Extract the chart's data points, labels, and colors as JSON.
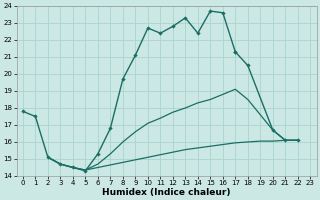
{
  "xlabel": "Humidex (Indice chaleur)",
  "xlim": [
    -0.5,
    23.5
  ],
  "ylim": [
    14,
    24
  ],
  "xticks": [
    0,
    1,
    2,
    3,
    4,
    5,
    6,
    7,
    8,
    9,
    10,
    11,
    12,
    13,
    14,
    15,
    16,
    17,
    18,
    19,
    20,
    21,
    22,
    23
  ],
  "yticks": [
    14,
    15,
    16,
    17,
    18,
    19,
    20,
    21,
    22,
    23,
    24
  ],
  "bg_color": "#cce8e4",
  "grid_color": "#aad4ce",
  "line_color": "#1a6e64",
  "line1_x": [
    0,
    1,
    2,
    3,
    4,
    5,
    6,
    7,
    8,
    9,
    10,
    11,
    12,
    13,
    14,
    15,
    16,
    17
  ],
  "line1_y": [
    17.8,
    17.5,
    15.1,
    14.7,
    14.5,
    14.3,
    15.3,
    16.8,
    19.7,
    21.1,
    22.7,
    22.4,
    22.8,
    23.3,
    22.4,
    23.7,
    23.6,
    21.3
  ],
  "line2_x": [
    17,
    18,
    20,
    21,
    22
  ],
  "line2_y": [
    21.3,
    20.5,
    16.7,
    16.1,
    16.1
  ],
  "line3_x": [
    2,
    3,
    4,
    5,
    6,
    7,
    8,
    9,
    10,
    11,
    12,
    13,
    14,
    15,
    16,
    17,
    18,
    20,
    21,
    22
  ],
  "line3_y": [
    15.1,
    14.7,
    14.5,
    14.35,
    14.7,
    15.3,
    16.0,
    16.6,
    17.1,
    17.4,
    17.75,
    18.0,
    18.3,
    18.5,
    18.8,
    19.1,
    18.5,
    16.7,
    16.1,
    16.1
  ],
  "line4_x": [
    2,
    3,
    4,
    5,
    6,
    7,
    8,
    9,
    10,
    11,
    12,
    13,
    14,
    15,
    16,
    17,
    18,
    19,
    20,
    21,
    22
  ],
  "line4_y": [
    15.1,
    14.7,
    14.5,
    14.35,
    14.5,
    14.65,
    14.8,
    14.95,
    15.1,
    15.25,
    15.4,
    15.55,
    15.65,
    15.75,
    15.85,
    15.95,
    16.0,
    16.05,
    16.05,
    16.1,
    16.1
  ]
}
